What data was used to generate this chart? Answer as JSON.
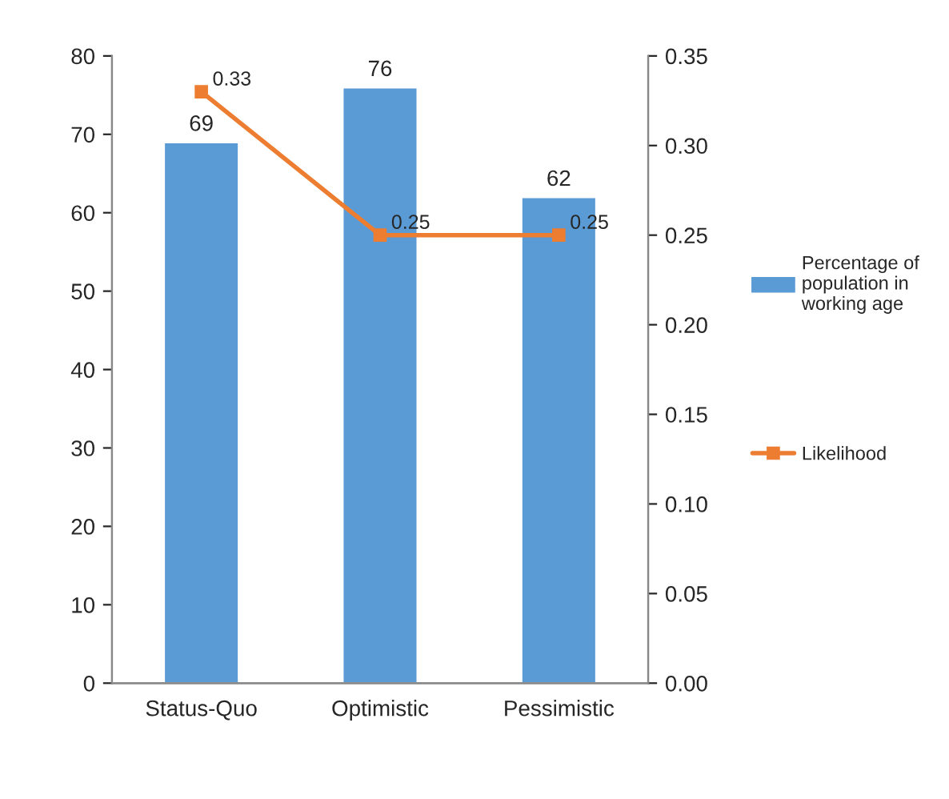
{
  "chart_data": {
    "type": "bar",
    "categories": [
      "Status-Quo",
      "Optimistic",
      "Pessimistic"
    ],
    "series": [
      {
        "name": "Percentage of\npopulation in\nworking age",
        "color": "#5b9bd5",
        "values": [
          69,
          76,
          62
        ]
      },
      {
        "name": "Likelihood",
        "type": "line",
        "axis": "y2",
        "color": "#ed7d31",
        "marker": "square",
        "values": [
          0.33,
          0.25,
          0.25
        ]
      }
    ],
    "ylim": [
      0,
      80
    ],
    "yticks": [
      0,
      10,
      20,
      30,
      40,
      50,
      60,
      70,
      80
    ],
    "y2lim": [
      0,
      0.35
    ],
    "y2ticks": [
      {
        "value": 0,
        "label": "0.00"
      },
      {
        "value": 0.05,
        "label": "0.05"
      },
      {
        "value": 0.1,
        "label": "0.10"
      },
      {
        "value": 0.15,
        "label": "0.15"
      },
      {
        "value": 0.2,
        "label": "0.20"
      },
      {
        "value": 0.25,
        "label": "0.25"
      },
      {
        "value": 0.3,
        "label": "0.30"
      },
      {
        "value": 0.35,
        "label": "0.35"
      }
    ],
    "data_labels": true,
    "grid": false,
    "legend": "right"
  }
}
